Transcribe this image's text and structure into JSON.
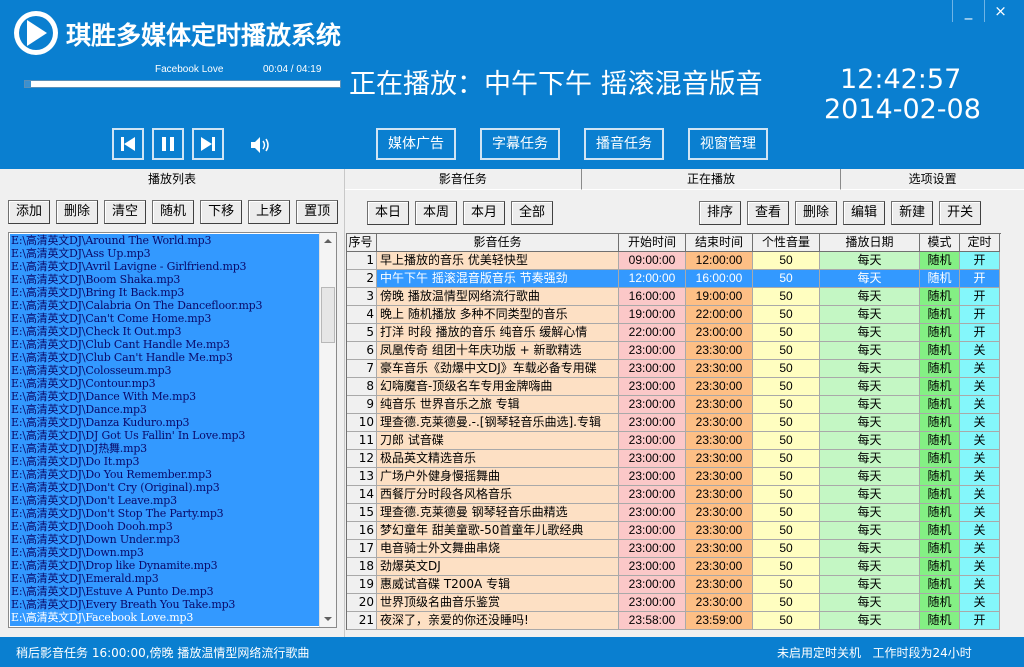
{
  "app": {
    "title": "琪胜多媒体定时播放系统",
    "minimize_label": "_",
    "close_label": "×"
  },
  "player": {
    "track_name": "Facebook Love",
    "time": "00:04 /  04:19",
    "progress_percent": 2,
    "now_playing": "正在播放：中午下午 摇滚混音版音",
    "clock": "12:42:57",
    "date": "2014-02-08"
  },
  "controls": {
    "prev": "previous-track",
    "pause": "pause",
    "next": "next-track",
    "volume": "volume"
  },
  "nav": {
    "buttons": [
      "媒体广告",
      "字幕任务",
      "播音任务",
      "视窗管理"
    ]
  },
  "playlist": {
    "tab_label": "播放列表",
    "buttons": [
      "添加",
      "删除",
      "清空",
      "随机",
      "下移",
      "上移",
      "置顶"
    ],
    "items": [
      "E:\\高清英文DJ\\Around The World.mp3",
      "E:\\高清英文DJ\\Ass Up.mp3",
      "E:\\高清英文DJ\\Avril Lavigne - Girlfriend.mp3",
      "E:\\高清英文DJ\\Boom Shaka.mp3",
      "E:\\高清英文DJ\\Bring It Back.mp3",
      "E:\\高清英文DJ\\Calabria On The Dancefloor.mp3",
      "E:\\高清英文DJ\\Can't Come Home.mp3",
      "E:\\高清英文DJ\\Check It Out.mp3",
      "E:\\高清英文DJ\\Club Cant Handle Me.mp3",
      "E:\\高清英文DJ\\Club Can't Handle Me.mp3",
      "E:\\高清英文DJ\\Colosseum.mp3",
      "E:\\高清英文DJ\\Contour.mp3",
      "E:\\高清英文DJ\\Dance With Me.mp3",
      "E:\\高清英文DJ\\Dance.mp3",
      "E:\\高清英文DJ\\Danza Kuduro.mp3",
      "E:\\高清英文DJ\\DJ Got Us Fallin' In Love.mp3",
      "E:\\高清英文DJ\\DJ热舞.mp3",
      "E:\\高清英文DJ\\Do It.mp3",
      "E:\\高清英文DJ\\Do You Remember.mp3",
      "E:\\高清英文DJ\\Don't Cry (Original).mp3",
      "E:\\高清英文DJ\\Don't Leave.mp3",
      "E:\\高清英文DJ\\Don't Stop The Party.mp3",
      "E:\\高清英文DJ\\Dooh Dooh.mp3",
      "E:\\高清英文DJ\\Down Under.mp3",
      "E:\\高清英文DJ\\Down.mp3",
      "E:\\高清英文DJ\\Drop like Dynamite.mp3",
      "E:\\高清英文DJ\\Emerald.mp3",
      "E:\\高清英文DJ\\Estuve A Punto De.mp3",
      "E:\\高清英文DJ\\Every Breath You Take.mp3",
      "E:\\高清英文DJ\\Facebook Love.mp3"
    ],
    "current_index": 29
  },
  "tabs": [
    {
      "label": "影音任务",
      "active": true
    },
    {
      "label": "正在播放",
      "active": false
    },
    {
      "label": "选项设置",
      "active": false
    }
  ],
  "filter_buttons": [
    "本日",
    "本周",
    "本月",
    "全部"
  ],
  "action_buttons": [
    "排序",
    "查看",
    "删除",
    "编辑",
    "新建",
    "开关"
  ],
  "table": {
    "columns": [
      "序号",
      "影音任务",
      "开始时间",
      "结束时间",
      "个性音量",
      "播放日期",
      "模式",
      "定时"
    ],
    "selected_row": 2,
    "rows": [
      {
        "no": "1",
        "task": "早上播放的音乐 优美轻快型",
        "start": "09:00:00",
        "end": "12:00:00",
        "volume": "50",
        "date": "每天",
        "mode": "随机",
        "timer": "开"
      },
      {
        "no": "2",
        "task": "中午下午 摇滚混音版音乐 节奏强劲",
        "start": "12:00:00",
        "end": "16:00:00",
        "volume": "50",
        "date": "每天",
        "mode": "随机",
        "timer": "开"
      },
      {
        "no": "3",
        "task": "傍晚 播放温情型网络流行歌曲",
        "start": "16:00:00",
        "end": "19:00:00",
        "volume": "50",
        "date": "每天",
        "mode": "随机",
        "timer": "开"
      },
      {
        "no": "4",
        "task": "晚上 随机播放 多种不同类型的音乐",
        "start": "19:00:00",
        "end": "22:00:00",
        "volume": "50",
        "date": "每天",
        "mode": "随机",
        "timer": "开"
      },
      {
        "no": "5",
        "task": "打洋 时段 播放的音乐  纯音乐 缓解心情",
        "start": "22:00:00",
        "end": "23:00:00",
        "volume": "50",
        "date": "每天",
        "mode": "随机",
        "timer": "开"
      },
      {
        "no": "6",
        "task": "凤凰传奇 组团十年庆功版 +  新歌精选",
        "start": "23:00:00",
        "end": "23:30:00",
        "volume": "50",
        "date": "每天",
        "mode": "随机",
        "timer": "关"
      },
      {
        "no": "7",
        "task": "豪车音乐《劲爆中文DJ》车载必备专用碟",
        "start": "23:00:00",
        "end": "23:30:00",
        "volume": "50",
        "date": "每天",
        "mode": "随机",
        "timer": "关"
      },
      {
        "no": "8",
        "task": "幻嗨魔音-顶级名车专用金牌嗨曲",
        "start": "23:00:00",
        "end": "23:30:00",
        "volume": "50",
        "date": "每天",
        "mode": "随机",
        "timer": "关"
      },
      {
        "no": "9",
        "task": "纯音乐 世界音乐之旅 专辑",
        "start": "23:00:00",
        "end": "23:30:00",
        "volume": "50",
        "date": "每天",
        "mode": "随机",
        "timer": "关"
      },
      {
        "no": "10",
        "task": "理查德.克莱德曼.-.[钢琴轻音乐曲选].专辑",
        "start": "23:00:00",
        "end": "23:30:00",
        "volume": "50",
        "date": "每天",
        "mode": "随机",
        "timer": "关"
      },
      {
        "no": "11",
        "task": "刀郎 试音碟",
        "start": "23:00:00",
        "end": "23:30:00",
        "volume": "50",
        "date": "每天",
        "mode": "随机",
        "timer": "关"
      },
      {
        "no": "12",
        "task": "极品英文精选音乐",
        "start": "23:00:00",
        "end": "23:30:00",
        "volume": "50",
        "date": "每天",
        "mode": "随机",
        "timer": "关"
      },
      {
        "no": "13",
        "task": "广场户外健身慢摇舞曲",
        "start": "23:00:00",
        "end": "23:30:00",
        "volume": "50",
        "date": "每天",
        "mode": "随机",
        "timer": "关"
      },
      {
        "no": "14",
        "task": "西餐厅分时段各风格音乐",
        "start": "23:00:00",
        "end": "23:30:00",
        "volume": "50",
        "date": "每天",
        "mode": "随机",
        "timer": "关"
      },
      {
        "no": "15",
        "task": "理查德.克莱德曼 钢琴轻音乐曲精选",
        "start": "23:00:00",
        "end": "23:30:00",
        "volume": "50",
        "date": "每天",
        "mode": "随机",
        "timer": "关"
      },
      {
        "no": "16",
        "task": "梦幻童年 甜美童歌-50首童年儿歌经典",
        "start": "23:00:00",
        "end": "23:30:00",
        "volume": "50",
        "date": "每天",
        "mode": "随机",
        "timer": "关"
      },
      {
        "no": "17",
        "task": "电音骑士外文舞曲串烧",
        "start": "23:00:00",
        "end": "23:30:00",
        "volume": "50",
        "date": "每天",
        "mode": "随机",
        "timer": "关"
      },
      {
        "no": "18",
        "task": "劲爆英文DJ",
        "start": "23:00:00",
        "end": "23:30:00",
        "volume": "50",
        "date": "每天",
        "mode": "随机",
        "timer": "关"
      },
      {
        "no": "19",
        "task": "惠威试音碟 T200A 专辑",
        "start": "23:00:00",
        "end": "23:30:00",
        "volume": "50",
        "date": "每天",
        "mode": "随机",
        "timer": "关"
      },
      {
        "no": "20",
        "task": "世界顶级名曲音乐鉴赏",
        "start": "23:00:00",
        "end": "23:30:00",
        "volume": "50",
        "date": "每天",
        "mode": "随机",
        "timer": "关"
      },
      {
        "no": "21",
        "task": "夜深了，亲爱的你还没睡吗!",
        "start": "23:58:00",
        "end": "23:59:00",
        "volume": "50",
        "date": "每天",
        "mode": "随机",
        "timer": "开"
      }
    ]
  },
  "status": {
    "left": "稍后影音任务 16:00:00,傍晚 播放温情型网络流行歌曲",
    "right": "未启用定时关机   工作时段为24小时"
  }
}
